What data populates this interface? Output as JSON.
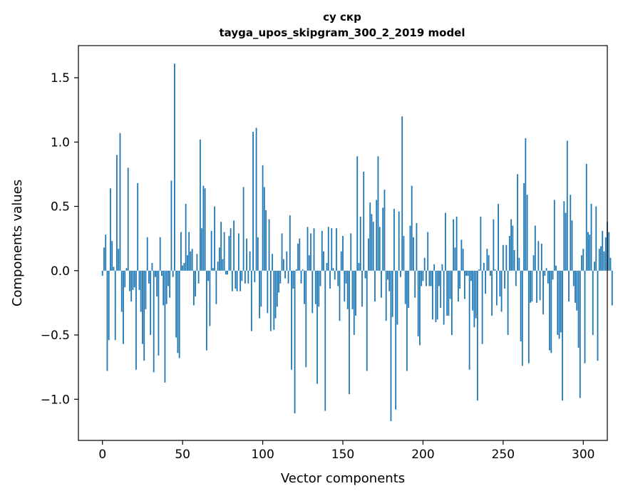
{
  "chart_data": {
    "type": "bar",
    "title": "су скр",
    "subtitle": "tayga_upos_skipgram_300_2_2019 model",
    "xlabel": "Vector components",
    "ylabel": "Components values",
    "xlim": [
      -15,
      315
    ],
    "ylim": [
      -1.32,
      1.75
    ],
    "xticks": [
      0,
      50,
      100,
      150,
      200,
      250,
      300
    ],
    "xtick_labels": [
      "0",
      "50",
      "100",
      "150",
      "200",
      "250",
      "300"
    ],
    "yticks": [
      -1.0,
      -0.5,
      0.0,
      0.5,
      1.0,
      1.5
    ],
    "ytick_labels": [
      "−1.0",
      "−0.5",
      "0.0",
      "0.5",
      "1.0",
      "1.5"
    ],
    "grid": false,
    "bar_color": "#1f77b4",
    "values": [
      -0.04,
      0.18,
      0.28,
      -0.78,
      -0.54,
      0.64,
      0.23,
      0.03,
      -0.54,
      0.9,
      0.17,
      1.07,
      -0.32,
      -0.57,
      -0.13,
      0.02,
      0.8,
      -0.16,
      -0.24,
      -0.15,
      -0.13,
      -0.77,
      0.68,
      -0.15,
      -0.32,
      -0.57,
      -0.7,
      -0.3,
      0.26,
      -0.1,
      -0.5,
      0.06,
      -0.79,
      -0.05,
      -0.2,
      -0.66,
      0.26,
      -0.04,
      -0.27,
      -0.87,
      -0.26,
      -0.12,
      -0.21,
      0.7,
      -0.05,
      1.61,
      -0.52,
      -0.64,
      -0.68,
      0.3,
      0.04,
      0.06,
      0.52,
      0.12,
      0.3,
      0.15,
      0.17,
      -0.27,
      -0.2,
      0.13,
      -0.1,
      1.02,
      0.33,
      0.66,
      0.64,
      -0.62,
      -0.08,
      -0.43,
      0.31,
      0.02,
      0.5,
      -0.26,
      0.07,
      0.18,
      0.38,
      0.09,
      0.3,
      -0.03,
      -0.03,
      0.27,
      0.33,
      -0.16,
      0.39,
      -0.14,
      -0.16,
      0.29,
      -0.16,
      -0.08,
      0.65,
      -0.1,
      0.25,
      -0.1,
      0.15,
      -0.47,
      1.08,
      -0.09,
      1.11,
      0.26,
      -0.37,
      -0.28,
      0.82,
      0.65,
      0.47,
      -0.33,
      0.4,
      -0.47,
      0.13,
      -0.46,
      -0.37,
      -0.28,
      -0.17,
      -0.1,
      0.29,
      0.09,
      -0.06,
      0.15,
      -0.1,
      0.43,
      -0.77,
      -0.14,
      -1.11,
      0.01,
      0.21,
      0.25,
      -0.1,
      0.01,
      -0.26,
      -0.75,
      0.34,
      0.12,
      0.29,
      -0.33,
      0.33,
      -0.26,
      -0.88,
      -0.28,
      -0.12,
      0.31,
      0.15,
      -1.09,
      0.06,
      0.34,
      -0.14,
      0.33,
      0.02,
      -0.07,
      0.33,
      -0.12,
      -0.39,
      0.15,
      0.27,
      -0.24,
      -0.1,
      -0.3,
      -0.96,
      0.29,
      -0.3,
      -0.5,
      -0.35,
      0.89,
      0.06,
      0.42,
      -0.28,
      0.77,
      -0.06,
      -0.78,
      0.25,
      0.53,
      0.44,
      0.38,
      -0.24,
      0.55,
      0.89,
      0.34,
      -0.21,
      0.49,
      0.63,
      -0.39,
      -0.07,
      -0.16,
      -1.17,
      -0.36,
      0.48,
      -1.08,
      -0.42,
      0.46,
      -0.05,
      1.2,
      0.27,
      -0.26,
      -0.78,
      -0.29,
      0.35,
      0.66,
      0.26,
      -0.21,
      0.37,
      -0.51,
      -0.58,
      -0.12,
      -0.08,
      0.1,
      -0.12,
      0.3,
      -0.12,
      -0.12,
      -0.38,
      0.05,
      -0.4,
      -0.38,
      -0.12,
      -0.29,
      0.05,
      -0.42,
      0.45,
      -0.35,
      -0.35,
      -0.22,
      -0.5,
      0.4,
      0.18,
      0.42,
      -0.24,
      -0.14,
      0.24,
      0.17,
      -0.22,
      -0.04,
      -0.04,
      -0.77,
      -0.08,
      -0.31,
      -0.44,
      -0.37,
      -1.01,
      0.01,
      0.42,
      -0.57,
      0.06,
      -0.18,
      0.17,
      0.12,
      -0.04,
      -0.35,
      0.4,
      0.01,
      -0.27,
      0.52,
      -0.2,
      -0.32,
      0.2,
      -0.14,
      0.2,
      -0.5,
      0.27,
      0.4,
      0.35,
      0.16,
      -0.12,
      0.75,
      0.1,
      -0.55,
      -0.74,
      0.68,
      1.03,
      0.59,
      -0.72,
      -0.25,
      -0.24,
      0.12,
      0.35,
      -0.25,
      0.23,
      -0.23,
      0.21,
      -0.34,
      -0.04,
      0.02,
      -0.1,
      -0.62,
      -0.64,
      -0.07,
      0.55,
      0.04,
      -0.5,
      -0.53,
      -0.48,
      -1.01,
      0.54,
      0.45,
      1.01,
      -0.24,
      0.59,
      0.39,
      -0.12,
      -0.25,
      -0.31,
      -0.6,
      -0.99,
      0.12,
      0.17,
      -0.72,
      0.83,
      0.3,
      0.28,
      0.52,
      -0.5,
      0.07,
      0.5,
      -0.7,
      0.17,
      0.19,
      0.31,
      0.15,
      0.26,
      0.38,
      0.3,
      0.1,
      -0.27
    ]
  }
}
